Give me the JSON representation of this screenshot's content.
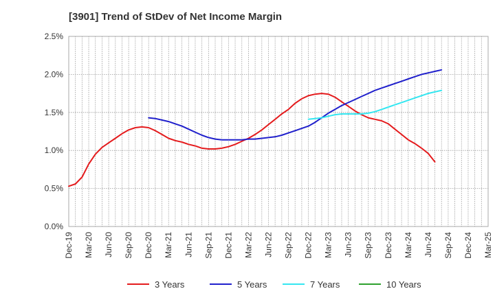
{
  "chart_data": {
    "type": "line",
    "title": "[3901]  Trend of StDev of Net Income Margin",
    "xlabel": "",
    "ylabel": "",
    "ylim": [
      0,
      2.5
    ],
    "yticks": [
      "0.0%",
      "0.5%",
      "1.0%",
      "1.5%",
      "2.0%",
      "2.5%"
    ],
    "xticks": [
      "Dec-19",
      "Mar-20",
      "Jun-20",
      "Sep-20",
      "Dec-20",
      "Mar-21",
      "Jun-21",
      "Sep-21",
      "Dec-21",
      "Mar-22",
      "Jun-22",
      "Sep-22",
      "Dec-22",
      "Mar-23",
      "Jun-23",
      "Sep-23",
      "Dec-23",
      "Mar-24",
      "Jun-24",
      "Sep-24",
      "Dec-24",
      "Mar-25"
    ],
    "grid": true,
    "legend_position": "bottom",
    "series": [
      {
        "name": "3 Years",
        "color": "#e41a1c",
        "points": [
          [
            0,
            0.53
          ],
          [
            1,
            0.56
          ],
          [
            2,
            0.65
          ],
          [
            3,
            0.82
          ],
          [
            4,
            0.95
          ],
          [
            5,
            1.04
          ],
          [
            6,
            1.1
          ],
          [
            7,
            1.16
          ],
          [
            8,
            1.22
          ],
          [
            9,
            1.27
          ],
          [
            10,
            1.3
          ],
          [
            11,
            1.31
          ],
          [
            12,
            1.3
          ],
          [
            13,
            1.26
          ],
          [
            14,
            1.21
          ],
          [
            15,
            1.16
          ],
          [
            16,
            1.13
          ],
          [
            17,
            1.11
          ],
          [
            18,
            1.08
          ],
          [
            19,
            1.06
          ],
          [
            20,
            1.03
          ],
          [
            21,
            1.02
          ],
          [
            22,
            1.02
          ],
          [
            23,
            1.03
          ],
          [
            24,
            1.05
          ],
          [
            25,
            1.08
          ],
          [
            26,
            1.12
          ],
          [
            27,
            1.16
          ],
          [
            28,
            1.21
          ],
          [
            29,
            1.27
          ],
          [
            30,
            1.34
          ],
          [
            31,
            1.41
          ],
          [
            32,
            1.48
          ],
          [
            33,
            1.54
          ],
          [
            34,
            1.62
          ],
          [
            35,
            1.68
          ],
          [
            36,
            1.72
          ],
          [
            37,
            1.74
          ],
          [
            38,
            1.75
          ],
          [
            39,
            1.74
          ],
          [
            40,
            1.7
          ],
          [
            41,
            1.64
          ],
          [
            42,
            1.58
          ],
          [
            43,
            1.52
          ],
          [
            44,
            1.47
          ],
          [
            45,
            1.43
          ],
          [
            46,
            1.41
          ],
          [
            47,
            1.39
          ],
          [
            48,
            1.35
          ],
          [
            49,
            1.28
          ],
          [
            50,
            1.21
          ],
          [
            51,
            1.14
          ],
          [
            52,
            1.09
          ],
          [
            53,
            1.03
          ],
          [
            54,
            0.96
          ],
          [
            55,
            0.85
          ]
        ]
      },
      {
        "name": "5 Years",
        "color": "#1f1fcc",
        "points": [
          [
            12,
            1.43
          ],
          [
            13,
            1.42
          ],
          [
            14,
            1.4
          ],
          [
            15,
            1.38
          ],
          [
            16,
            1.35
          ],
          [
            17,
            1.32
          ],
          [
            18,
            1.28
          ],
          [
            19,
            1.24
          ],
          [
            20,
            1.2
          ],
          [
            21,
            1.17
          ],
          [
            22,
            1.15
          ],
          [
            23,
            1.14
          ],
          [
            24,
            1.14
          ],
          [
            25,
            1.14
          ],
          [
            26,
            1.14
          ],
          [
            27,
            1.15
          ],
          [
            28,
            1.15
          ],
          [
            29,
            1.16
          ],
          [
            30,
            1.17
          ],
          [
            31,
            1.18
          ],
          [
            32,
            1.2
          ],
          [
            33,
            1.23
          ],
          [
            34,
            1.26
          ],
          [
            35,
            1.29
          ],
          [
            36,
            1.32
          ],
          [
            37,
            1.37
          ],
          [
            38,
            1.43
          ],
          [
            39,
            1.49
          ],
          [
            40,
            1.54
          ],
          [
            41,
            1.59
          ],
          [
            42,
            1.63
          ],
          [
            43,
            1.67
          ],
          [
            44,
            1.71
          ],
          [
            45,
            1.75
          ],
          [
            46,
            1.79
          ],
          [
            47,
            1.82
          ],
          [
            48,
            1.85
          ],
          [
            49,
            1.88
          ],
          [
            50,
            1.91
          ],
          [
            51,
            1.94
          ],
          [
            52,
            1.97
          ],
          [
            53,
            2.0
          ],
          [
            54,
            2.02
          ],
          [
            55,
            2.04
          ],
          [
            56,
            2.06
          ]
        ]
      },
      {
        "name": "7 Years",
        "color": "#33e6f0",
        "points": [
          [
            36,
            1.41
          ],
          [
            37,
            1.42
          ],
          [
            38,
            1.43
          ],
          [
            39,
            1.45
          ],
          [
            40,
            1.47
          ],
          [
            41,
            1.48
          ],
          [
            42,
            1.48
          ],
          [
            43,
            1.48
          ],
          [
            44,
            1.48
          ],
          [
            45,
            1.49
          ],
          [
            46,
            1.51
          ],
          [
            47,
            1.54
          ],
          [
            48,
            1.57
          ],
          [
            49,
            1.6
          ],
          [
            50,
            1.63
          ],
          [
            51,
            1.66
          ],
          [
            52,
            1.69
          ],
          [
            53,
            1.72
          ],
          [
            54,
            1.75
          ],
          [
            55,
            1.77
          ],
          [
            56,
            1.79
          ]
        ]
      },
      {
        "name": "10 Years",
        "color": "#2ca02c",
        "points": []
      }
    ]
  }
}
